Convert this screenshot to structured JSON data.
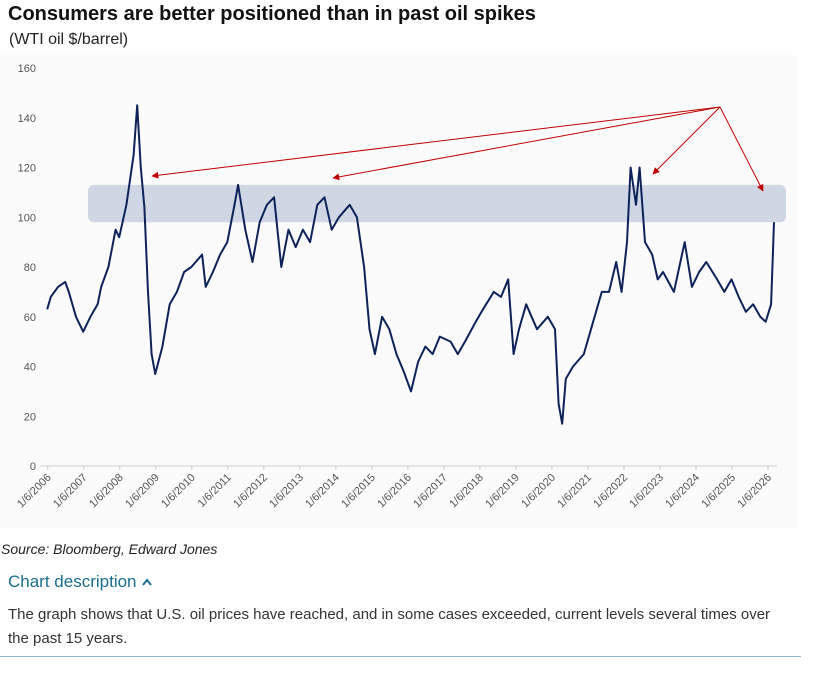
{
  "chart_data": {
    "type": "line",
    "title": "Consumers are better positioned than in past oil spikes",
    "subtitle": "(WTI oil $/barrel)",
    "x": [
      2006.0,
      2006.1,
      2006.3,
      2006.5,
      2006.6,
      2006.8,
      2007.0,
      2007.2,
      2007.4,
      2007.5,
      2007.7,
      2007.9,
      2008.0,
      2008.2,
      2008.4,
      2008.5,
      2008.6,
      2008.7,
      2008.8,
      2008.9,
      2009.0,
      2009.2,
      2009.4,
      2009.6,
      2009.8,
      2010.0,
      2010.3,
      2010.4,
      2010.6,
      2010.8,
      2011.0,
      2011.2,
      2011.3,
      2011.5,
      2011.7,
      2011.9,
      2012.1,
      2012.3,
      2012.5,
      2012.7,
      2012.9,
      2013.1,
      2013.3,
      2013.5,
      2013.7,
      2013.9,
      2014.1,
      2014.4,
      2014.6,
      2014.8,
      2014.95,
      2015.1,
      2015.3,
      2015.5,
      2015.7,
      2015.9,
      2016.1,
      2016.3,
      2016.5,
      2016.7,
      2016.9,
      2017.2,
      2017.4,
      2017.6,
      2017.9,
      2018.1,
      2018.4,
      2018.6,
      2018.8,
      2018.95,
      2019.1,
      2019.3,
      2019.6,
      2019.9,
      2020.1,
      2020.2,
      2020.3,
      2020.4,
      2020.6,
      2020.9,
      2021.1,
      2021.4,
      2021.6,
      2021.8,
      2021.95,
      2022.1,
      2022.2,
      2022.35,
      2022.45,
      2022.6,
      2022.8,
      2022.95,
      2023.1,
      2023.4,
      2023.7,
      2023.9,
      2024.1,
      2024.3,
      2024.6,
      2024.8,
      2025.0,
      2025.2,
      2025.4,
      2025.6,
      2025.8,
      2025.95,
      2026.1,
      2026.18
    ],
    "series": [
      {
        "color": "#0d2259",
        "values": [
          63,
          68,
          72,
          74,
          70,
          60,
          54,
          60,
          65,
          72,
          80,
          95,
          92,
          105,
          125,
          145,
          120,
          104,
          70,
          45,
          37,
          48,
          65,
          70,
          78,
          80,
          85,
          72,
          78,
          85,
          90,
          105,
          113,
          95,
          82,
          98,
          105,
          108,
          80,
          95,
          88,
          95,
          90,
          105,
          108,
          95,
          100,
          105,
          100,
          80,
          55,
          45,
          60,
          55,
          45,
          38,
          30,
          42,
          48,
          45,
          52,
          50,
          45,
          50,
          58,
          63,
          70,
          68,
          75,
          45,
          55,
          65,
          55,
          60,
          55,
          25,
          17,
          35,
          40,
          45,
          55,
          70,
          70,
          82,
          70,
          90,
          120,
          105,
          120,
          90,
          85,
          75,
          78,
          70,
          90,
          72,
          78,
          82,
          75,
          70,
          75,
          68,
          62,
          65,
          60,
          58,
          65,
          98
        ]
      }
    ],
    "highlight_band": [
      98,
      113
    ],
    "xlim": [
      2005.8,
      2026.25
    ],
    "xticks": [
      {
        "value": 2006.014,
        "label": "1/6/2006"
      },
      {
        "value": 2007.014,
        "label": "1/6/2007"
      },
      {
        "value": 2008.014,
        "label": "1/6/2008"
      },
      {
        "value": 2009.014,
        "label": "1/6/2009"
      },
      {
        "value": 2010.014,
        "label": "1/6/2010"
      },
      {
        "value": 2011.014,
        "label": "1/6/2011"
      },
      {
        "value": 2012.014,
        "label": "1/6/2012"
      },
      {
        "value": 2013.014,
        "label": "1/6/2013"
      },
      {
        "value": 2014.014,
        "label": "1/6/2014"
      },
      {
        "value": 2015.014,
        "label": "1/6/2015"
      },
      {
        "value": 2016.014,
        "label": "1/6/2016"
      },
      {
        "value": 2017.014,
        "label": "1/6/2017"
      },
      {
        "value": 2018.014,
        "label": "1/6/2018"
      },
      {
        "value": 2019.014,
        "label": "1/6/2019"
      },
      {
        "value": 2020.014,
        "label": "1/6/2020"
      },
      {
        "value": 2021.014,
        "label": "1/6/2021"
      },
      {
        "value": 2022.014,
        "label": "1/6/2022"
      },
      {
        "value": 2023.014,
        "label": "1/6/2023"
      },
      {
        "value": 2024.014,
        "label": "1/6/2024"
      },
      {
        "value": 2025.014,
        "label": "1/6/2025"
      },
      {
        "value": 2026.014,
        "label": "1/6/2026"
      }
    ],
    "ylim": [
      0,
      160
    ],
    "yticks": [
      0,
      20,
      40,
      60,
      80,
      100,
      120,
      140,
      160
    ],
    "grid": false
  },
  "source": "Source: Bloomberg, Edward Jones",
  "description_title": "Chart description",
  "description": "The graph shows that U.S. oil prices have reached, and in some cases exceeded, current levels several times over the past 15 years."
}
